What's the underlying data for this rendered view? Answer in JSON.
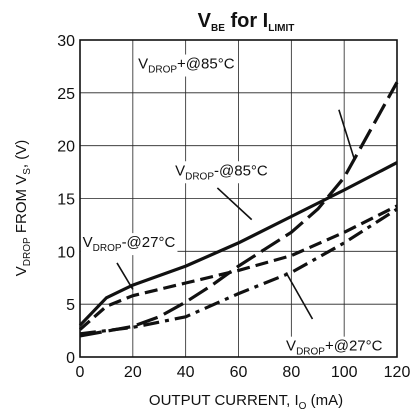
{
  "chart_data": {
    "type": "line",
    "title": {
      "main": "V",
      "main_sub": "BE",
      "mid": " for I",
      "mid_sub": "LIMIT"
    },
    "xlabel": {
      "main": "OUTPUT CURRENT, I",
      "sub": "O",
      "unit": " (mA)"
    },
    "ylabel": {
      "p1": "V",
      "p1_sub": "DROP",
      "p2": " FROM V",
      "p2_sub": "S",
      "p3": ", (V)"
    },
    "xlim": [
      0,
      120
    ],
    "ylim": [
      0,
      30
    ],
    "x_ticks": [
      0,
      20,
      40,
      60,
      80,
      100,
      120
    ],
    "y_ticks": [
      0,
      5,
      10,
      15,
      20,
      25,
      30
    ],
    "grid": true,
    "series": [
      {
        "name": "V_DROP-@85°C",
        "dash": "solid",
        "points": [
          [
            0,
            3.0
          ],
          [
            10,
            5.6
          ],
          [
            20,
            6.8
          ],
          [
            40,
            8.6
          ],
          [
            60,
            10.8
          ],
          [
            80,
            13.3
          ],
          [
            100,
            15.8
          ],
          [
            120,
            18.4
          ]
        ]
      },
      {
        "name": "V_DROP-@27°C",
        "dash": "dash",
        "points": [
          [
            0,
            2.6
          ],
          [
            10,
            4.8
          ],
          [
            20,
            5.8
          ],
          [
            40,
            7.0
          ],
          [
            60,
            8.2
          ],
          [
            80,
            9.6
          ],
          [
            100,
            11.8
          ],
          [
            120,
            14.3
          ]
        ]
      },
      {
        "name": "V_DROP+@85°C",
        "dash": "longdash",
        "points": [
          [
            0,
            2.0
          ],
          [
            20,
            2.9
          ],
          [
            30,
            3.8
          ],
          [
            40,
            5.2
          ],
          [
            50,
            6.8
          ],
          [
            60,
            8.6
          ],
          [
            70,
            10.2
          ],
          [
            80,
            11.8
          ],
          [
            90,
            14.0
          ],
          [
            100,
            17.0
          ],
          [
            110,
            21.5
          ],
          [
            120,
            26.0
          ]
        ]
      },
      {
        "name": "V_DROP+@27°C",
        "dash": "dashdot",
        "points": [
          [
            0,
            2.2
          ],
          [
            20,
            2.8
          ],
          [
            40,
            3.8
          ],
          [
            60,
            6.0
          ],
          [
            80,
            8.0
          ],
          [
            100,
            10.8
          ],
          [
            120,
            14.0
          ]
        ]
      }
    ],
    "annotations": [
      {
        "series": 2,
        "main": "V",
        "sub": "DROP",
        "rest": "+@85°C",
        "label_x": 22,
        "label_y": 27.3,
        "lead_from": [
          98,
          23.4
        ],
        "lead_to": [
          104,
          18.6
        ]
      },
      {
        "series": 0,
        "main": "V",
        "sub": "DROP",
        "rest": "-@85°C",
        "label_x": 36,
        "label_y": 17.2,
        "lead_from": [
          52,
          16.0
        ],
        "lead_to": [
          65,
          13.0
        ]
      },
      {
        "series": 1,
        "main": "V",
        "sub": "DROP",
        "rest": "-@27°C",
        "label_x": 1,
        "label_y": 10.4,
        "lead_from": [
          14,
          8.9
        ],
        "lead_to": [
          20,
          6.4
        ]
      },
      {
        "series": 3,
        "main": "V",
        "sub": "DROP",
        "rest": "+@27°C",
        "label_x": 78,
        "label_y": 0.6,
        "lead_from": [
          88,
          3.6
        ],
        "lead_to": [
          78,
          8.0
        ]
      }
    ]
  }
}
